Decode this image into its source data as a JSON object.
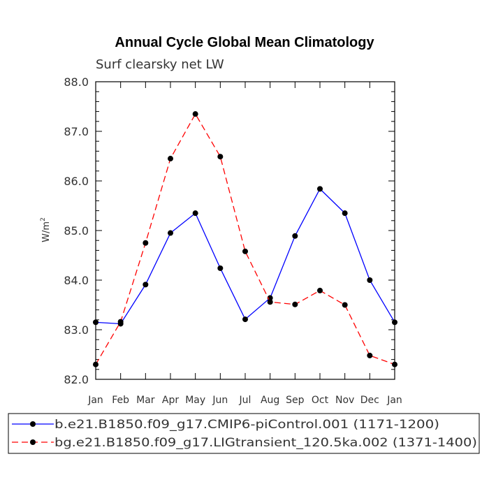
{
  "chart_data": {
    "type": "line",
    "title": "Annual Cycle Global Mean Climatology",
    "subtitle": "Surf clearsky net LW",
    "ylabel_base": "W/m",
    "ylabel_exp": "2",
    "xlabel": "",
    "ylim": [
      82.0,
      88.0
    ],
    "yticks": [
      "82.0",
      "83.0",
      "84.0",
      "85.0",
      "86.0",
      "87.0",
      "88.0"
    ],
    "categories": [
      "Jan",
      "Feb",
      "Mar",
      "Apr",
      "May",
      "Jun",
      "Jul",
      "Aug",
      "Sep",
      "Oct",
      "Nov",
      "Dec",
      "Jan"
    ],
    "series": [
      {
        "name": "b.e21.B1850.f09_g17.CMIP6-piControl.001 (1171-1200)",
        "color": "#0000ff",
        "dash": "solid",
        "values": [
          83.15,
          83.12,
          83.91,
          84.95,
          85.35,
          84.24,
          83.21,
          83.64,
          84.89,
          85.84,
          85.35,
          84.0,
          83.15
        ]
      },
      {
        "name": "bg.e21.B1850.f09_g17.LIGtransient_120.5ka.002 (1371-1400)",
        "color": "#ff0000",
        "dash": "dashed",
        "values": [
          82.3,
          83.16,
          84.75,
          86.45,
          87.35,
          86.49,
          84.58,
          83.56,
          83.51,
          83.79,
          83.5,
          82.48,
          82.3
        ]
      }
    ],
    "legend_position": "bottom"
  }
}
